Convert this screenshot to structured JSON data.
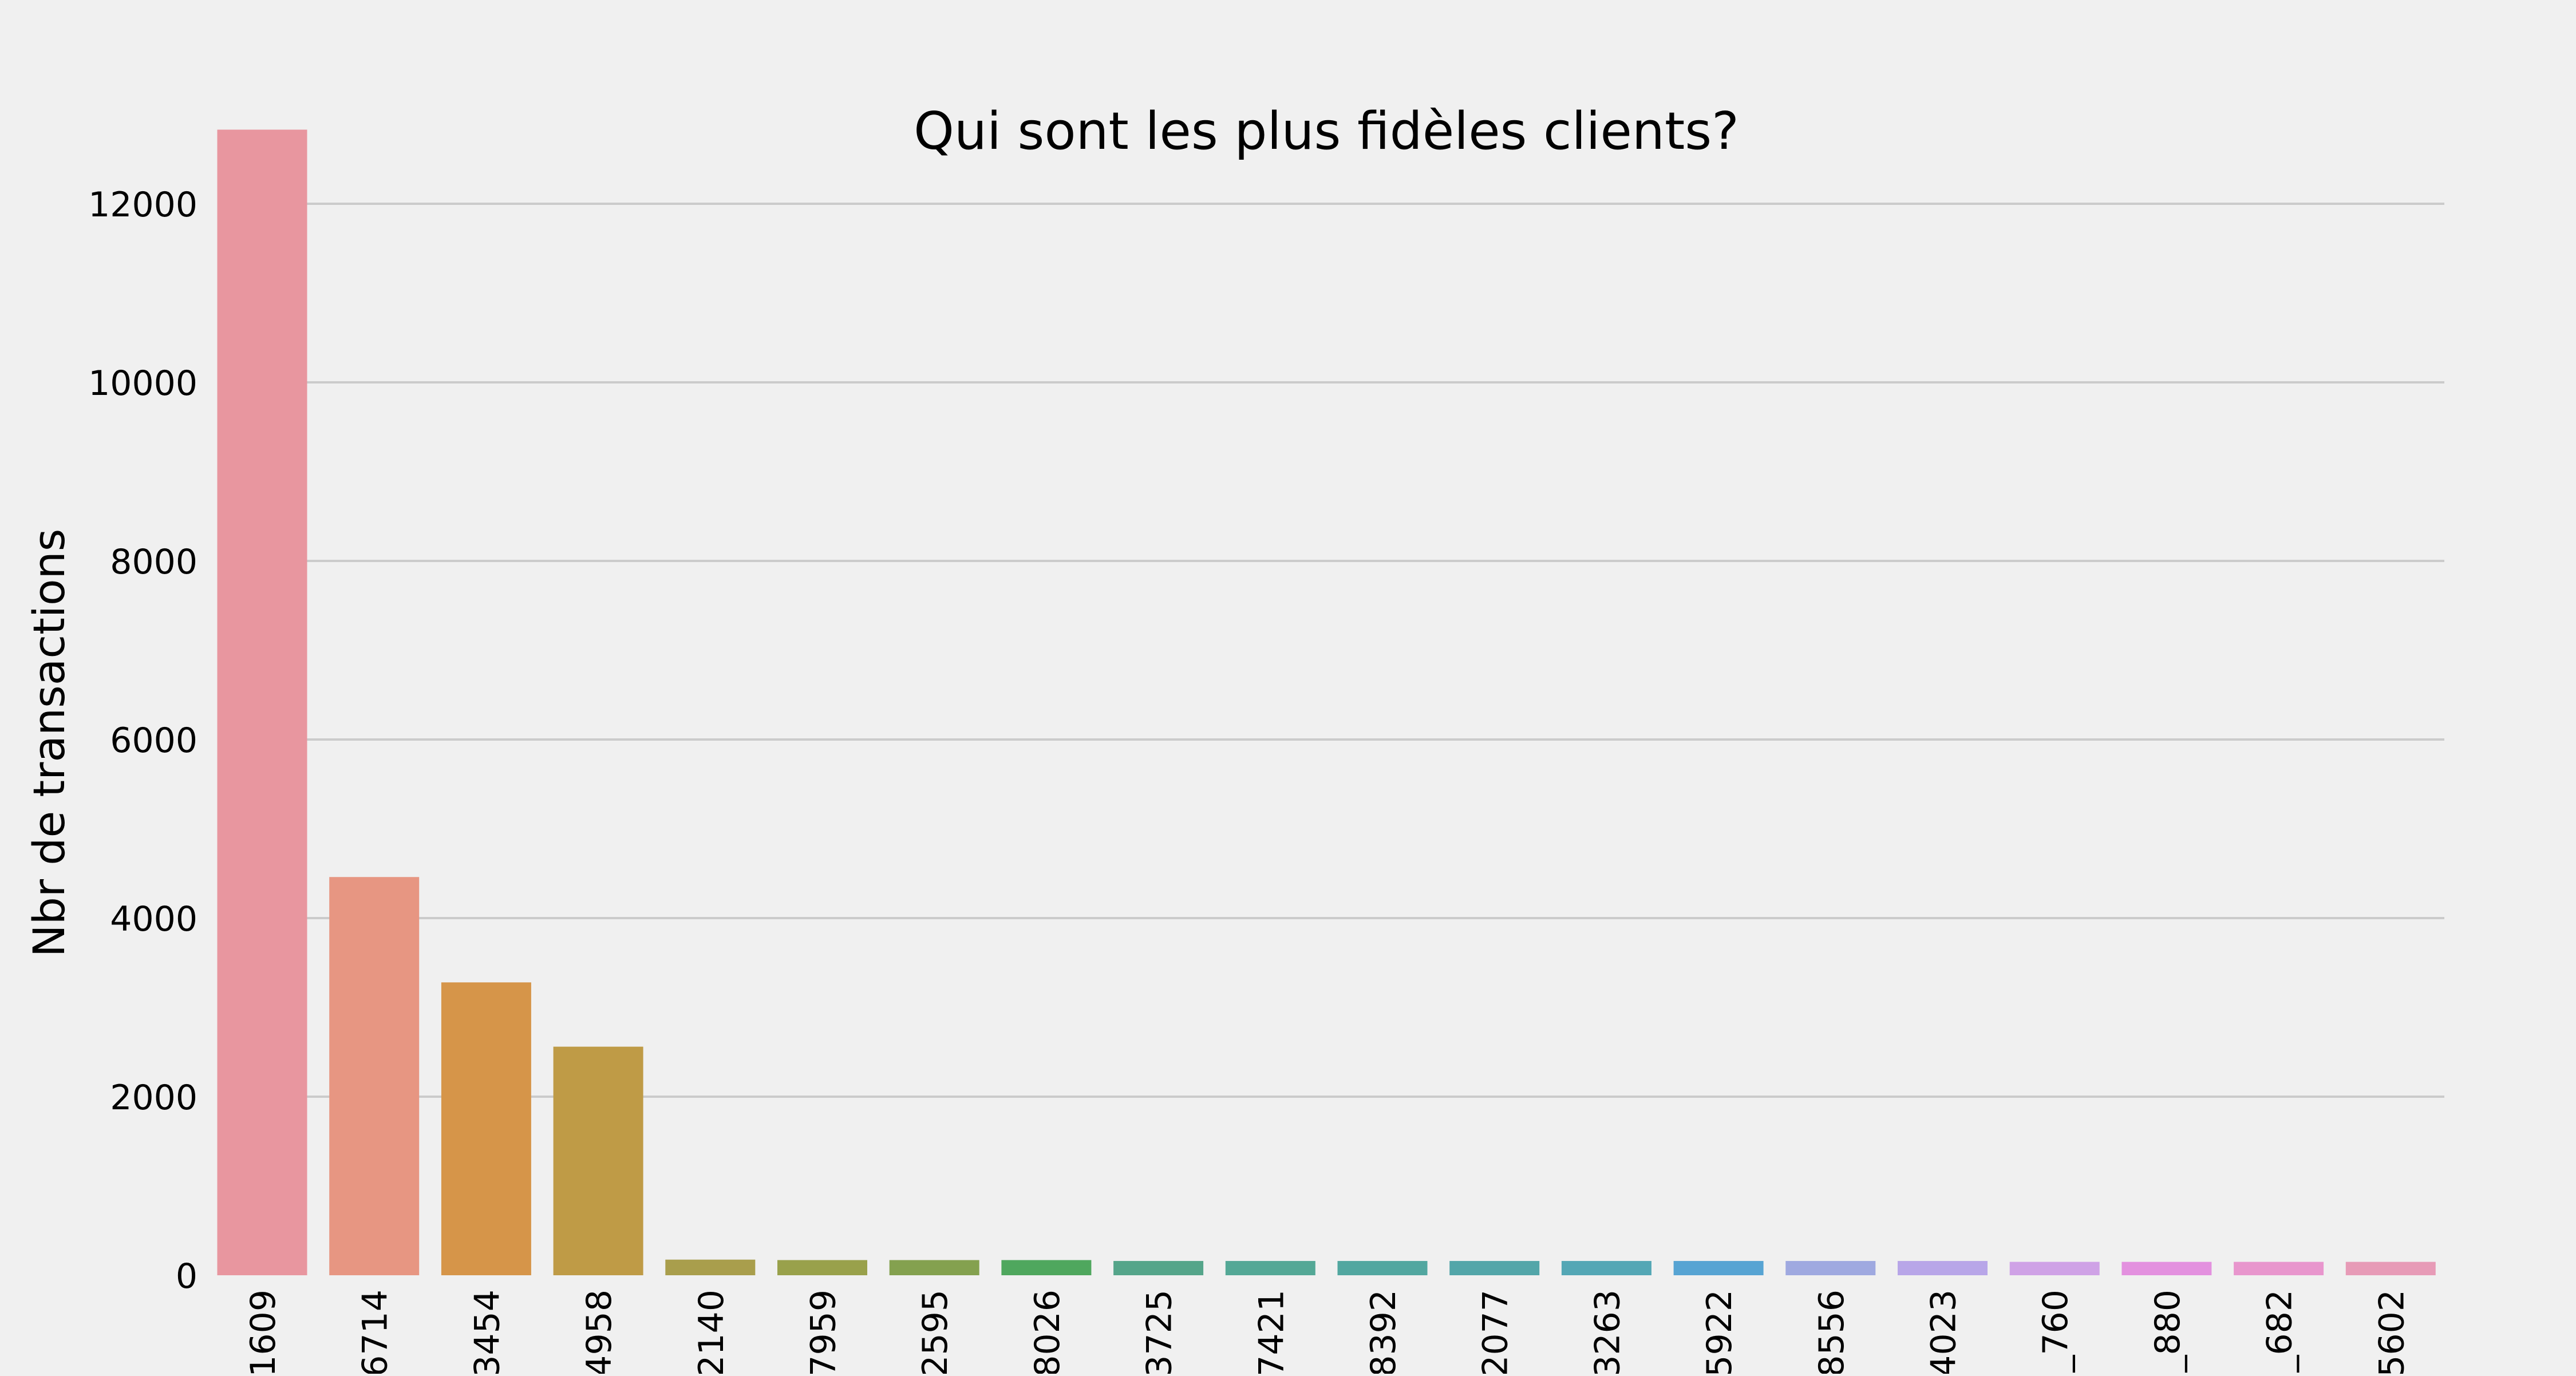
{
  "chart_data": {
    "type": "bar",
    "title": "Qui sont les plus fidèles clients?",
    "xlabel": "",
    "ylabel": "Nbr de transactions",
    "ylim": [
      0,
      13000
    ],
    "yticks": [
      0,
      2000,
      4000,
      6000,
      8000,
      10000,
      12000
    ],
    "ytick_labels": [
      "0",
      "2000",
      "4000",
      "6000",
      "8000",
      "10000",
      "12000"
    ],
    "grid": "horizontal",
    "categories": [
      "1609",
      "6714",
      "3454",
      "4958",
      "2140",
      "7959",
      "2595",
      "8026",
      "3725",
      "7421",
      "8392",
      "2077",
      "3263",
      "5922",
      "8556",
      "4023",
      "_760",
      "_880",
      "_682",
      "5602"
    ],
    "values": [
      12830,
      4460,
      3280,
      2560,
      175,
      170,
      170,
      170,
      160,
      160,
      160,
      160,
      160,
      160,
      160,
      160,
      150,
      150,
      150,
      150
    ],
    "colors": [
      "#e8969f",
      "#e79682",
      "#d69549",
      "#bf9b46",
      "#a99e4c",
      "#99a14b",
      "#84a14f",
      "#4fa75e",
      "#55a58a",
      "#54a896",
      "#52a7a0",
      "#53a6a9",
      "#54a7b5",
      "#57a4d3",
      "#9fa9e0",
      "#b8a6e8",
      "#cfa2e6",
      "#e391df",
      "#e896cd",
      "#e79bb7"
    ]
  }
}
